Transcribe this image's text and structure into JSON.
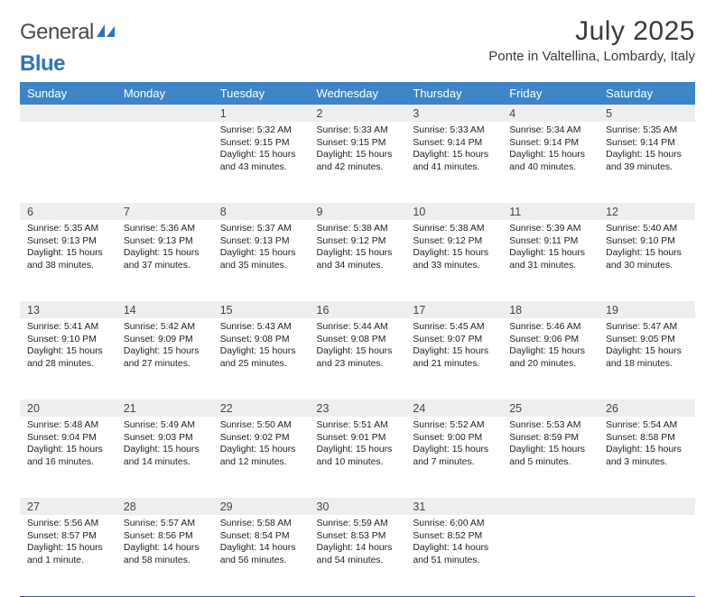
{
  "branding": {
    "logo_word1": "General",
    "logo_word2": "Blue",
    "logo_color_primary": "#4a4a4a",
    "logo_color_accent": "#2e75b6"
  },
  "header": {
    "month_title": "July 2025",
    "location": "Ponte in Valtellina, Lombardy, Italy"
  },
  "styling": {
    "header_row_bg": "#3d85c6",
    "header_row_text": "#ffffff",
    "daynum_row_bg": "#eeeeee",
    "week_divider_color": "#2e5d8a",
    "body_text_color": "#222222",
    "page_bg": "#ffffff",
    "title_fontsize_pt": 22,
    "location_fontsize_pt": 11,
    "dayheader_fontsize_pt": 10,
    "body_fontsize_pt": 8
  },
  "calendar": {
    "day_headers": [
      "Sunday",
      "Monday",
      "Tuesday",
      "Wednesday",
      "Thursday",
      "Friday",
      "Saturday"
    ],
    "weeks": [
      [
        {
          "num": "",
          "sunrise": "",
          "sunset": "",
          "daylight": ""
        },
        {
          "num": "",
          "sunrise": "",
          "sunset": "",
          "daylight": ""
        },
        {
          "num": "1",
          "sunrise": "Sunrise: 5:32 AM",
          "sunset": "Sunset: 9:15 PM",
          "daylight": "Daylight: 15 hours and 43 minutes."
        },
        {
          "num": "2",
          "sunrise": "Sunrise: 5:33 AM",
          "sunset": "Sunset: 9:15 PM",
          "daylight": "Daylight: 15 hours and 42 minutes."
        },
        {
          "num": "3",
          "sunrise": "Sunrise: 5:33 AM",
          "sunset": "Sunset: 9:14 PM",
          "daylight": "Daylight: 15 hours and 41 minutes."
        },
        {
          "num": "4",
          "sunrise": "Sunrise: 5:34 AM",
          "sunset": "Sunset: 9:14 PM",
          "daylight": "Daylight: 15 hours and 40 minutes."
        },
        {
          "num": "5",
          "sunrise": "Sunrise: 5:35 AM",
          "sunset": "Sunset: 9:14 PM",
          "daylight": "Daylight: 15 hours and 39 minutes."
        }
      ],
      [
        {
          "num": "6",
          "sunrise": "Sunrise: 5:35 AM",
          "sunset": "Sunset: 9:13 PM",
          "daylight": "Daylight: 15 hours and 38 minutes."
        },
        {
          "num": "7",
          "sunrise": "Sunrise: 5:36 AM",
          "sunset": "Sunset: 9:13 PM",
          "daylight": "Daylight: 15 hours and 37 minutes."
        },
        {
          "num": "8",
          "sunrise": "Sunrise: 5:37 AM",
          "sunset": "Sunset: 9:13 PM",
          "daylight": "Daylight: 15 hours and 35 minutes."
        },
        {
          "num": "9",
          "sunrise": "Sunrise: 5:38 AM",
          "sunset": "Sunset: 9:12 PM",
          "daylight": "Daylight: 15 hours and 34 minutes."
        },
        {
          "num": "10",
          "sunrise": "Sunrise: 5:38 AM",
          "sunset": "Sunset: 9:12 PM",
          "daylight": "Daylight: 15 hours and 33 minutes."
        },
        {
          "num": "11",
          "sunrise": "Sunrise: 5:39 AM",
          "sunset": "Sunset: 9:11 PM",
          "daylight": "Daylight: 15 hours and 31 minutes."
        },
        {
          "num": "12",
          "sunrise": "Sunrise: 5:40 AM",
          "sunset": "Sunset: 9:10 PM",
          "daylight": "Daylight: 15 hours and 30 minutes."
        }
      ],
      [
        {
          "num": "13",
          "sunrise": "Sunrise: 5:41 AM",
          "sunset": "Sunset: 9:10 PM",
          "daylight": "Daylight: 15 hours and 28 minutes."
        },
        {
          "num": "14",
          "sunrise": "Sunrise: 5:42 AM",
          "sunset": "Sunset: 9:09 PM",
          "daylight": "Daylight: 15 hours and 27 minutes."
        },
        {
          "num": "15",
          "sunrise": "Sunrise: 5:43 AM",
          "sunset": "Sunset: 9:08 PM",
          "daylight": "Daylight: 15 hours and 25 minutes."
        },
        {
          "num": "16",
          "sunrise": "Sunrise: 5:44 AM",
          "sunset": "Sunset: 9:08 PM",
          "daylight": "Daylight: 15 hours and 23 minutes."
        },
        {
          "num": "17",
          "sunrise": "Sunrise: 5:45 AM",
          "sunset": "Sunset: 9:07 PM",
          "daylight": "Daylight: 15 hours and 21 minutes."
        },
        {
          "num": "18",
          "sunrise": "Sunrise: 5:46 AM",
          "sunset": "Sunset: 9:06 PM",
          "daylight": "Daylight: 15 hours and 20 minutes."
        },
        {
          "num": "19",
          "sunrise": "Sunrise: 5:47 AM",
          "sunset": "Sunset: 9:05 PM",
          "daylight": "Daylight: 15 hours and 18 minutes."
        }
      ],
      [
        {
          "num": "20",
          "sunrise": "Sunrise: 5:48 AM",
          "sunset": "Sunset: 9:04 PM",
          "daylight": "Daylight: 15 hours and 16 minutes."
        },
        {
          "num": "21",
          "sunrise": "Sunrise: 5:49 AM",
          "sunset": "Sunset: 9:03 PM",
          "daylight": "Daylight: 15 hours and 14 minutes."
        },
        {
          "num": "22",
          "sunrise": "Sunrise: 5:50 AM",
          "sunset": "Sunset: 9:02 PM",
          "daylight": "Daylight: 15 hours and 12 minutes."
        },
        {
          "num": "23",
          "sunrise": "Sunrise: 5:51 AM",
          "sunset": "Sunset: 9:01 PM",
          "daylight": "Daylight: 15 hours and 10 minutes."
        },
        {
          "num": "24",
          "sunrise": "Sunrise: 5:52 AM",
          "sunset": "Sunset: 9:00 PM",
          "daylight": "Daylight: 15 hours and 7 minutes."
        },
        {
          "num": "25",
          "sunrise": "Sunrise: 5:53 AM",
          "sunset": "Sunset: 8:59 PM",
          "daylight": "Daylight: 15 hours and 5 minutes."
        },
        {
          "num": "26",
          "sunrise": "Sunrise: 5:54 AM",
          "sunset": "Sunset: 8:58 PM",
          "daylight": "Daylight: 15 hours and 3 minutes."
        }
      ],
      [
        {
          "num": "27",
          "sunrise": "Sunrise: 5:56 AM",
          "sunset": "Sunset: 8:57 PM",
          "daylight": "Daylight: 15 hours and 1 minute."
        },
        {
          "num": "28",
          "sunrise": "Sunrise: 5:57 AM",
          "sunset": "Sunset: 8:56 PM",
          "daylight": "Daylight: 14 hours and 58 minutes."
        },
        {
          "num": "29",
          "sunrise": "Sunrise: 5:58 AM",
          "sunset": "Sunset: 8:54 PM",
          "daylight": "Daylight: 14 hours and 56 minutes."
        },
        {
          "num": "30",
          "sunrise": "Sunrise: 5:59 AM",
          "sunset": "Sunset: 8:53 PM",
          "daylight": "Daylight: 14 hours and 54 minutes."
        },
        {
          "num": "31",
          "sunrise": "Sunrise: 6:00 AM",
          "sunset": "Sunset: 8:52 PM",
          "daylight": "Daylight: 14 hours and 51 minutes."
        },
        {
          "num": "",
          "sunrise": "",
          "sunset": "",
          "daylight": ""
        },
        {
          "num": "",
          "sunrise": "",
          "sunset": "",
          "daylight": ""
        }
      ]
    ]
  }
}
